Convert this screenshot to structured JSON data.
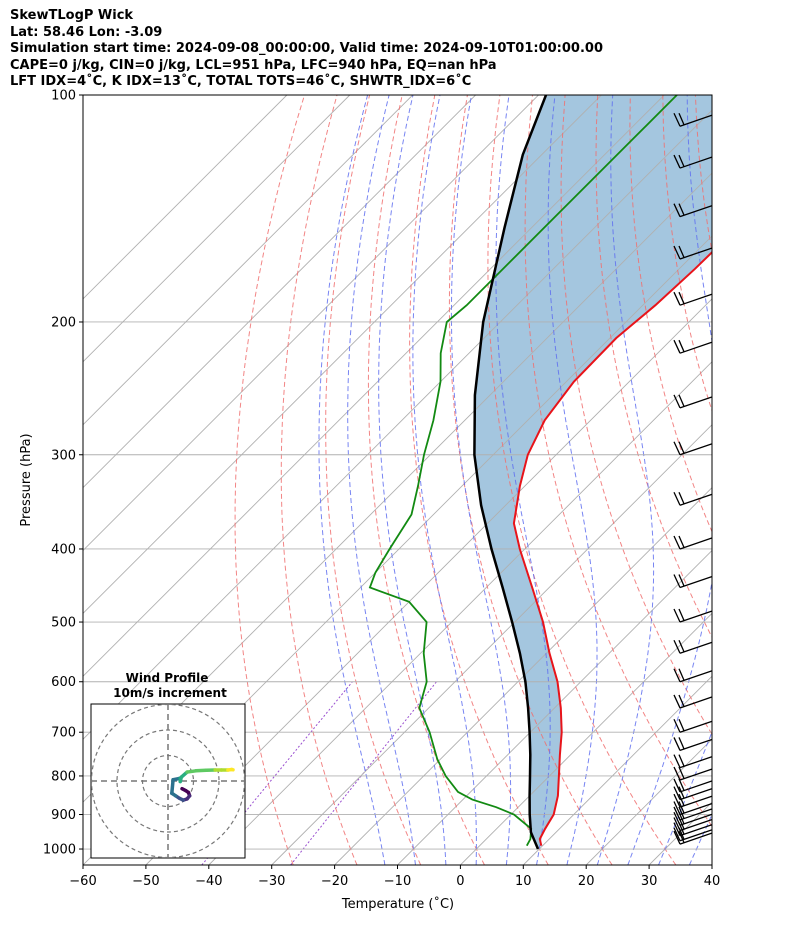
{
  "header": {
    "line1": "SkewTLogP Wick",
    "line2": "Lat: 58.46   Lon: -3.09",
    "line3": "Simulation start time: 2024-09-08_00:00:00, Valid time: 2024-09-10T01:00:00.00",
    "line4": "CAPE=0 j/kg, CIN=0 j/kg, LCL=951 hPa, LFC=940 hPa, EQ=nan hPa",
    "line5": "LFT IDX=4˚C, K IDX=13˚C, TOTAL TOTS=46˚C, SHWTR_IDX=6˚C"
  },
  "colors": {
    "temperature": "#e8141a",
    "dewpoint": "#128a12",
    "parcel": "#000000",
    "cape_fill": "#a4c6df",
    "isotherm": "#b0b0b0",
    "dry_adiabat": "#f07070",
    "moist_adiabat": "#6070f0",
    "mixing_ratio": "#9a50d0"
  },
  "chart_data": {
    "type": "line",
    "title": "",
    "xlabel": "Temperature (˚C)",
    "ylabel": "Pressure (hPa)",
    "x_ticks": [
      "−60",
      "−50",
      "−40",
      "−30",
      "−20",
      "−10",
      "0",
      "10",
      "20",
      "30",
      "40"
    ],
    "y_ticks": [
      "100",
      "200",
      "300",
      "400",
      "500",
      "600",
      "700",
      "800",
      "900",
      "1000"
    ],
    "xlim": [
      -60,
      40
    ],
    "ylim": [
      1050,
      100
    ],
    "y_scale": "log",
    "skew": "45 degrees",
    "grid": true,
    "series": [
      {
        "key": "temperature",
        "pressure": [
          990,
          970,
          940,
          900,
          850,
          800,
          750,
          700,
          650,
          600,
          550,
          500,
          450,
          400,
          370,
          330,
          300,
          270,
          240,
          210,
          190,
          170,
          150,
          135,
          120,
          110,
          100
        ],
        "temperature": [
          9.8,
          8.5,
          7.7,
          6.8,
          4.5,
          1.5,
          -1.7,
          -5.0,
          -9.0,
          -13.7,
          -19.5,
          -25.5,
          -32.7,
          -40.8,
          -45.8,
          -50.8,
          -54.5,
          -57.3,
          -58.8,
          -59.0,
          -58.0,
          -57.5,
          -57.3,
          -55.3,
          -52.0,
          -51.8,
          -53.5
        ]
      },
      {
        "key": "dewpoint",
        "pressure": [
          990,
          970,
          940,
          900,
          880,
          860,
          840,
          800,
          760,
          700,
          650,
          600,
          550,
          500,
          470,
          450,
          430,
          400,
          360,
          330,
          300,
          270,
          240,
          220,
          200,
          190,
          150,
          110,
          100
        ],
        "temperature": [
          7.5,
          7.0,
          5.5,
          0.5,
          -3.5,
          -8.5,
          -12.0,
          -16.5,
          -20.5,
          -26.0,
          -31.5,
          -34.5,
          -39.5,
          -44.0,
          -50.0,
          -58.5,
          -60.0,
          -61.5,
          -63.5,
          -67.0,
          -71.0,
          -75.0,
          -80.0,
          -84.5,
          -88.5,
          -88.0,
          -88.0,
          -88.0,
          -88.0
        ]
      },
      {
        "key": "parcel",
        "pressure": [
          1000,
          950,
          900,
          850,
          800,
          750,
          700,
          650,
          600,
          550,
          500,
          450,
          400,
          350,
          300,
          250,
          200,
          150,
          120,
          100
        ],
        "temperature": [
          9.8,
          6.0,
          3.0,
          0.0,
          -3.1,
          -6.4,
          -10.1,
          -14.2,
          -18.8,
          -24.2,
          -30.4,
          -37.4,
          -45.3,
          -53.9,
          -63.0,
          -72.4,
          -82.7,
          -94.3,
          -103.0,
          -108.8
        ]
      }
    ],
    "cape_cin_shading": "between parcel and temperature",
    "wind_barbs_pressure": [
      985,
      975,
      960,
      945,
      930,
      915,
      900,
      880,
      860,
      840,
      810,
      780,
      740,
      700,
      650,
      600,
      550,
      500,
      450,
      400,
      350,
      300,
      260,
      220,
      190,
      165,
      145,
      125,
      110
    ]
  },
  "hodograph": {
    "title": "Wind Profile",
    "subtitle": "10m/s increment",
    "rings_ms": [
      10,
      20,
      30
    ],
    "u": [
      5.5,
      7.0,
      8.0,
      8.5,
      7.5,
      6.0,
      4.5,
      3.0,
      1.5,
      2.0,
      4.5,
      5.0,
      4.8,
      5.2,
      7.5,
      11.0,
      15.0,
      18.5,
      21.0,
      23.5,
      25.0,
      25.5
    ],
    "v": [
      -3.0,
      -3.8,
      -4.5,
      -5.8,
      -7.0,
      -7.5,
      -6.8,
      -5.8,
      -4.8,
      0.5,
      1.0,
      0.8,
      -0.2,
      1.5,
      3.5,
      4.0,
      4.2,
      4.3,
      4.3,
      4.3,
      4.5,
      4.4
    ]
  }
}
